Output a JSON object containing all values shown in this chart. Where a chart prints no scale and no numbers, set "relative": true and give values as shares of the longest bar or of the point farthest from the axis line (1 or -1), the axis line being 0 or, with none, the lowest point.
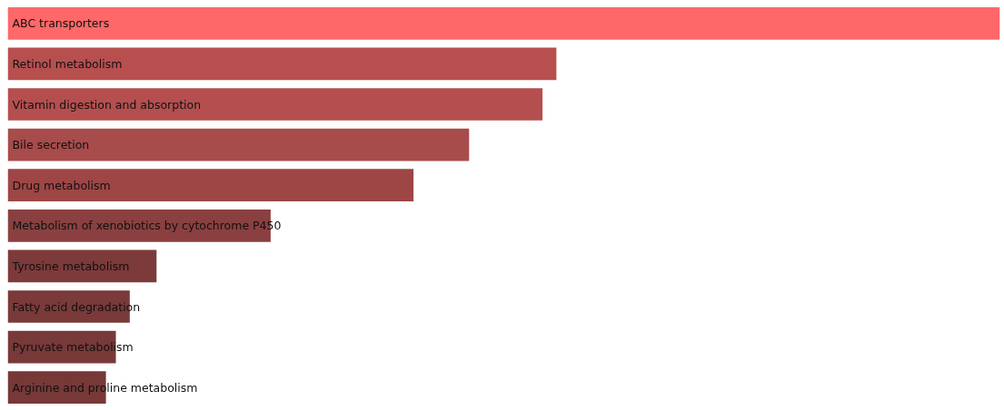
{
  "chart_data": {
    "type": "bar",
    "orientation": "horizontal",
    "relative": true,
    "grid": false,
    "categories": [
      "ABC transporters",
      "Retinol metabolism",
      "Vitamin digestion and absorption",
      "Bile secretion",
      "Drug metabolism",
      "Metabolism of xenobiotics by cytochrome P450",
      "Tyrosine metabolism",
      "Fatty acid degradation",
      "Pyruvate metabolism",
      "Arginine and proline metabolism"
    ],
    "values": [
      1,
      0.553,
      0.539,
      0.465,
      0.409,
      0.265,
      0.15,
      0.123,
      0.109,
      0.099
    ],
    "colors": [
      "#fe6868",
      "#b84f4f",
      "#b54f4f",
      "#a84b4b",
      "#9e4646",
      "#8a4040",
      "#7d3a3a",
      "#7a3a3a",
      "#783939",
      "#773838"
    ]
  }
}
